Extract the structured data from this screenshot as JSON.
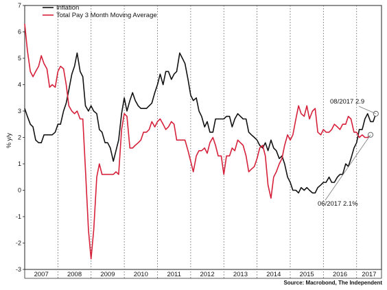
{
  "chart_data": {
    "type": "line",
    "ylabel": "% y/y",
    "ylim": [
      -3,
      7
    ],
    "yticks": [
      -3,
      -2,
      -1,
      0,
      1,
      2,
      3,
      4,
      5,
      6,
      7
    ],
    "xlim": [
      2007.0,
      2017.75
    ],
    "year_labels": [
      "2007",
      "2008",
      "2009",
      "2010",
      "2011",
      "2012",
      "2013",
      "2014",
      "2015",
      "2016",
      "2017"
    ],
    "legend_position": "top-left",
    "grid": "dotted vertical lines at year boundaries",
    "source": "Source: Macrobond, The Independent",
    "series": [
      {
        "name": "Inflation",
        "color": "#111111",
        "x": [
          2007.0,
          2007.08,
          2007.17,
          2007.25,
          2007.33,
          2007.42,
          2007.5,
          2007.58,
          2007.67,
          2007.75,
          2007.83,
          2007.92,
          2008.0,
          2008.08,
          2008.17,
          2008.25,
          2008.33,
          2008.42,
          2008.5,
          2008.58,
          2008.67,
          2008.75,
          2008.83,
          2008.92,
          2009.0,
          2009.08,
          2009.17,
          2009.25,
          2009.33,
          2009.42,
          2009.5,
          2009.58,
          2009.67,
          2009.75,
          2009.83,
          2009.92,
          2010.0,
          2010.08,
          2010.17,
          2010.25,
          2010.33,
          2010.42,
          2010.5,
          2010.58,
          2010.67,
          2010.75,
          2010.83,
          2010.92,
          2011.0,
          2011.08,
          2011.17,
          2011.25,
          2011.33,
          2011.42,
          2011.5,
          2011.58,
          2011.67,
          2011.75,
          2011.83,
          2011.92,
          2012.0,
          2012.08,
          2012.17,
          2012.25,
          2012.33,
          2012.42,
          2012.5,
          2012.58,
          2012.67,
          2012.75,
          2012.83,
          2012.92,
          2013.0,
          2013.08,
          2013.17,
          2013.25,
          2013.33,
          2013.42,
          2013.5,
          2013.58,
          2013.67,
          2013.75,
          2013.83,
          2013.92,
          2014.0,
          2014.08,
          2014.17,
          2014.25,
          2014.33,
          2014.42,
          2014.5,
          2014.58,
          2014.67,
          2014.75,
          2014.83,
          2014.92,
          2015.0,
          2015.08,
          2015.17,
          2015.25,
          2015.33,
          2015.42,
          2015.5,
          2015.58,
          2015.67,
          2015.75,
          2015.83,
          2015.92,
          2016.0,
          2016.08,
          2016.17,
          2016.25,
          2016.33,
          2016.42,
          2016.5,
          2016.58,
          2016.67,
          2016.75,
          2016.83,
          2016.92,
          2017.0,
          2017.08,
          2017.17,
          2017.25,
          2017.33,
          2017.42,
          2017.5,
          2017.58
        ],
        "y": [
          3.1,
          2.8,
          2.5,
          2.4,
          1.9,
          1.8,
          1.8,
          2.1,
          2.1,
          2.1,
          2.1,
          2.2,
          2.5,
          2.5,
          3.0,
          3.3,
          3.8,
          4.4,
          4.7,
          5.2,
          4.5,
          4.3,
          3.2,
          3.0,
          3.2,
          3.0,
          2.9,
          2.3,
          2.2,
          1.8,
          1.8,
          1.6,
          1.1,
          1.5,
          1.9,
          2.9,
          3.5,
          3.0,
          3.4,
          3.7,
          3.4,
          3.2,
          3.1,
          3.1,
          3.1,
          3.2,
          3.3,
          3.7,
          4.0,
          4.4,
          4.0,
          4.5,
          4.5,
          4.2,
          4.4,
          4.5,
          5.2,
          5.0,
          4.8,
          4.2,
          3.6,
          3.4,
          3.5,
          3.0,
          2.8,
          2.4,
          2.6,
          2.2,
          2.2,
          2.7,
          2.7,
          2.7,
          2.7,
          2.8,
          2.8,
          2.4,
          2.7,
          2.9,
          2.8,
          2.7,
          2.7,
          2.2,
          2.1,
          2.0,
          1.9,
          1.7,
          1.6,
          1.8,
          1.5,
          1.9,
          1.6,
          1.5,
          1.2,
          1.3,
          1.0,
          0.5,
          0.3,
          0.0,
          0.0,
          -0.1,
          0.1,
          0.0,
          0.1,
          0.0,
          -0.1,
          -0.1,
          0.1,
          0.2,
          0.3,
          0.3,
          0.5,
          0.3,
          0.3,
          0.5,
          0.6,
          0.6,
          1.0,
          0.9,
          1.2,
          1.6,
          1.8,
          2.3,
          2.3,
          2.7,
          2.9,
          2.6,
          2.6,
          2.9
        ]
      },
      {
        "name": "Total Pay 3 Month Moving Average",
        "color": "#d6203a",
        "x": [
          2007.0,
          2007.08,
          2007.17,
          2007.25,
          2007.33,
          2007.42,
          2007.5,
          2007.58,
          2007.67,
          2007.75,
          2007.83,
          2007.92,
          2008.0,
          2008.08,
          2008.17,
          2008.25,
          2008.33,
          2008.42,
          2008.5,
          2008.58,
          2008.67,
          2008.75,
          2008.83,
          2008.92,
          2009.0,
          2009.08,
          2009.17,
          2009.25,
          2009.33,
          2009.42,
          2009.5,
          2009.58,
          2009.67,
          2009.75,
          2009.83,
          2009.92,
          2010.0,
          2010.08,
          2010.17,
          2010.25,
          2010.33,
          2010.42,
          2010.5,
          2010.58,
          2010.67,
          2010.75,
          2010.83,
          2010.92,
          2011.0,
          2011.08,
          2011.17,
          2011.25,
          2011.33,
          2011.42,
          2011.5,
          2011.58,
          2011.67,
          2011.75,
          2011.83,
          2011.92,
          2012.0,
          2012.08,
          2012.17,
          2012.25,
          2012.33,
          2012.42,
          2012.5,
          2012.58,
          2012.67,
          2012.75,
          2012.83,
          2012.92,
          2013.0,
          2013.08,
          2013.17,
          2013.25,
          2013.33,
          2013.42,
          2013.5,
          2013.58,
          2013.67,
          2013.75,
          2013.83,
          2013.92,
          2014.0,
          2014.08,
          2014.17,
          2014.25,
          2014.33,
          2014.42,
          2014.5,
          2014.58,
          2014.67,
          2014.75,
          2014.83,
          2014.92,
          2015.0,
          2015.08,
          2015.17,
          2015.25,
          2015.33,
          2015.42,
          2015.5,
          2015.58,
          2015.67,
          2015.75,
          2015.83,
          2015.92,
          2016.0,
          2016.08,
          2016.17,
          2016.25,
          2016.33,
          2016.42,
          2016.5,
          2016.58,
          2016.67,
          2016.75,
          2016.83,
          2016.92,
          2017.0,
          2017.08,
          2017.17,
          2017.25,
          2017.33,
          2017.42
        ],
        "y": [
          6.3,
          5.3,
          4.5,
          4.3,
          4.5,
          4.7,
          5.1,
          4.8,
          4.6,
          3.9,
          4.0,
          3.9,
          4.5,
          4.7,
          4.6,
          4.0,
          3.2,
          3.0,
          2.9,
          3.0,
          2.7,
          2.7,
          0.8,
          -1.5,
          -2.6,
          -1.5,
          0.5,
          1.0,
          0.6,
          0.6,
          0.6,
          0.6,
          0.6,
          0.7,
          0.6,
          2.3,
          2.9,
          2.8,
          1.6,
          1.6,
          1.7,
          1.8,
          1.9,
          2.2,
          2.2,
          2.3,
          2.6,
          2.4,
          2.6,
          2.7,
          2.5,
          2.3,
          2.4,
          2.6,
          2.5,
          1.9,
          1.9,
          1.9,
          1.9,
          1.5,
          1.1,
          0.7,
          1.3,
          1.5,
          1.5,
          1.6,
          1.4,
          1.8,
          2.0,
          1.7,
          1.3,
          1.3,
          0.6,
          1.3,
          1.3,
          1.6,
          1.5,
          1.9,
          1.8,
          1.7,
          1.3,
          0.7,
          0.8,
          0.9,
          1.2,
          1.6,
          1.7,
          1.3,
          0.2,
          -0.3,
          0.5,
          0.7,
          1.0,
          1.2,
          1.7,
          2.1,
          1.9,
          2.1,
          2.7,
          3.2,
          2.9,
          2.8,
          3.2,
          2.7,
          3.0,
          3.1,
          2.2,
          2.1,
          2.3,
          2.2,
          2.2,
          2.3,
          2.5,
          2.4,
          2.3,
          2.5,
          2.5,
          2.8,
          2.7,
          2.2,
          2.2,
          2.0,
          2.1,
          2.0,
          2.0,
          2.1
        ]
      }
    ],
    "annotations": [
      {
        "text": "08/2017 2.9",
        "series": 0,
        "x": 2017.58,
        "y": 2.9
      },
      {
        "text": "06/2017 2.1%",
        "series": 1,
        "x": 2017.42,
        "y": 2.1
      }
    ]
  }
}
